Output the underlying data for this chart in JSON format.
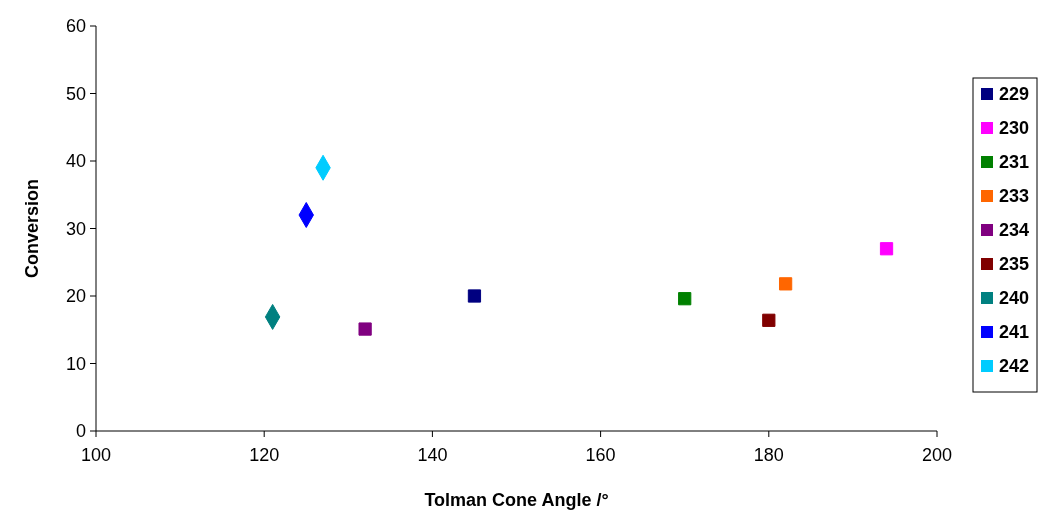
{
  "chart_data": {
    "type": "scatter",
    "xlabel": "Tolman Cone Angle /°",
    "ylabel": "Conversion",
    "xlim": [
      100,
      200
    ],
    "xticks": [
      100,
      120,
      140,
      160,
      180,
      200
    ],
    "ylim": [
      0,
      60
    ],
    "yticks": [
      0,
      10,
      20,
      30,
      40,
      50,
      60
    ],
    "grid": false,
    "legend": "right",
    "series": [
      {
        "name": "229",
        "color": "#000080",
        "marker": "square",
        "x": [
          145
        ],
        "values": [
          20
        ]
      },
      {
        "name": "230",
        "color": "#ff00ff",
        "marker": "square",
        "x": [
          194
        ],
        "values": [
          27
        ]
      },
      {
        "name": "231",
        "color": "#008000",
        "marker": "square",
        "x": [
          170
        ],
        "values": [
          19.6
        ]
      },
      {
        "name": "233",
        "color": "#ff6600",
        "marker": "square",
        "x": [
          182
        ],
        "values": [
          21.8
        ]
      },
      {
        "name": "234",
        "color": "#800080",
        "marker": "square",
        "x": [
          132
        ],
        "values": [
          15.1
        ]
      },
      {
        "name": "235",
        "color": "#800000",
        "marker": "square",
        "x": [
          180
        ],
        "values": [
          16.4
        ]
      },
      {
        "name": "240",
        "color": "#008080",
        "marker": "diamond",
        "x": [
          121
        ],
        "values": [
          16.9
        ]
      },
      {
        "name": "241",
        "color": "#0000ff",
        "marker": "diamond",
        "x": [
          125
        ],
        "values": [
          32
        ]
      },
      {
        "name": "242",
        "color": "#00ccff",
        "marker": "diamond",
        "x": [
          127
        ],
        "values": [
          39
        ]
      }
    ]
  }
}
